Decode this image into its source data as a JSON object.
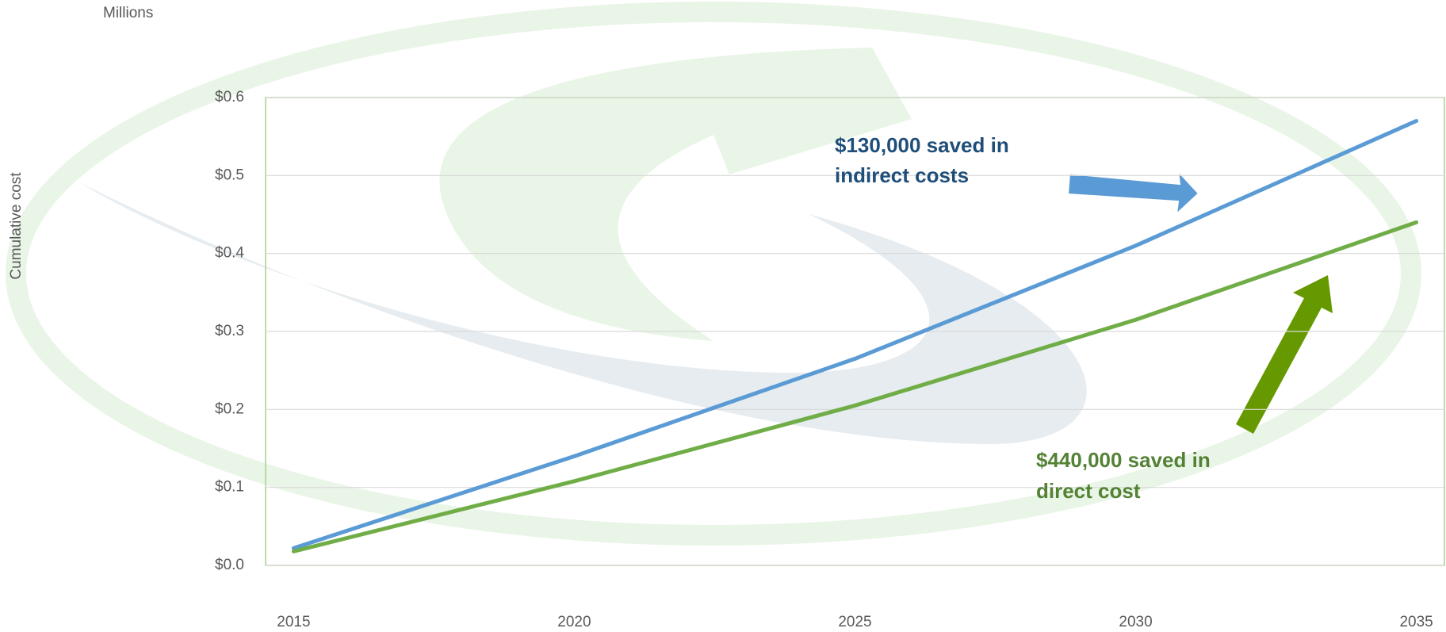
{
  "chart_data": {
    "type": "line",
    "y_unit_label": "Millions",
    "y_axis_label": "Cumulative cost",
    "x": [
      2015,
      2020,
      2025,
      2030,
      2035
    ],
    "series": [
      {
        "name": "Indirect costs",
        "color": "#5b9bd5",
        "values": [
          0.022,
          0.14,
          0.265,
          0.41,
          0.57
        ]
      },
      {
        "name": "Direct cost",
        "color": "#70ad47",
        "values": [
          0.018,
          0.108,
          0.205,
          0.315,
          0.44
        ]
      }
    ],
    "xlim": [
      2014.5,
      2035.5
    ],
    "xticks": [
      2015,
      2020,
      2025,
      2030,
      2035
    ],
    "ylim": [
      0,
      0.6
    ],
    "yticks": [
      {
        "value": 0,
        "label": "$0.0"
      },
      {
        "value": 0.1,
        "label": "$0.1"
      },
      {
        "value": 0.2,
        "label": "$0.2"
      },
      {
        "value": 0.3,
        "label": "$0.3"
      },
      {
        "value": 0.4,
        "label": "$0.4"
      },
      {
        "value": 0.5,
        "label": "$0.5"
      },
      {
        "value": 0.6,
        "label": "$0.6"
      }
    ],
    "grid": true,
    "annotations": [
      {
        "lines": [
          "$130,000 saved in",
          "indirect costs"
        ],
        "color": "#1f4e79"
      },
      {
        "lines": [
          "$440,000 saved in",
          "direct cost"
        ],
        "color": "#548235"
      }
    ]
  }
}
